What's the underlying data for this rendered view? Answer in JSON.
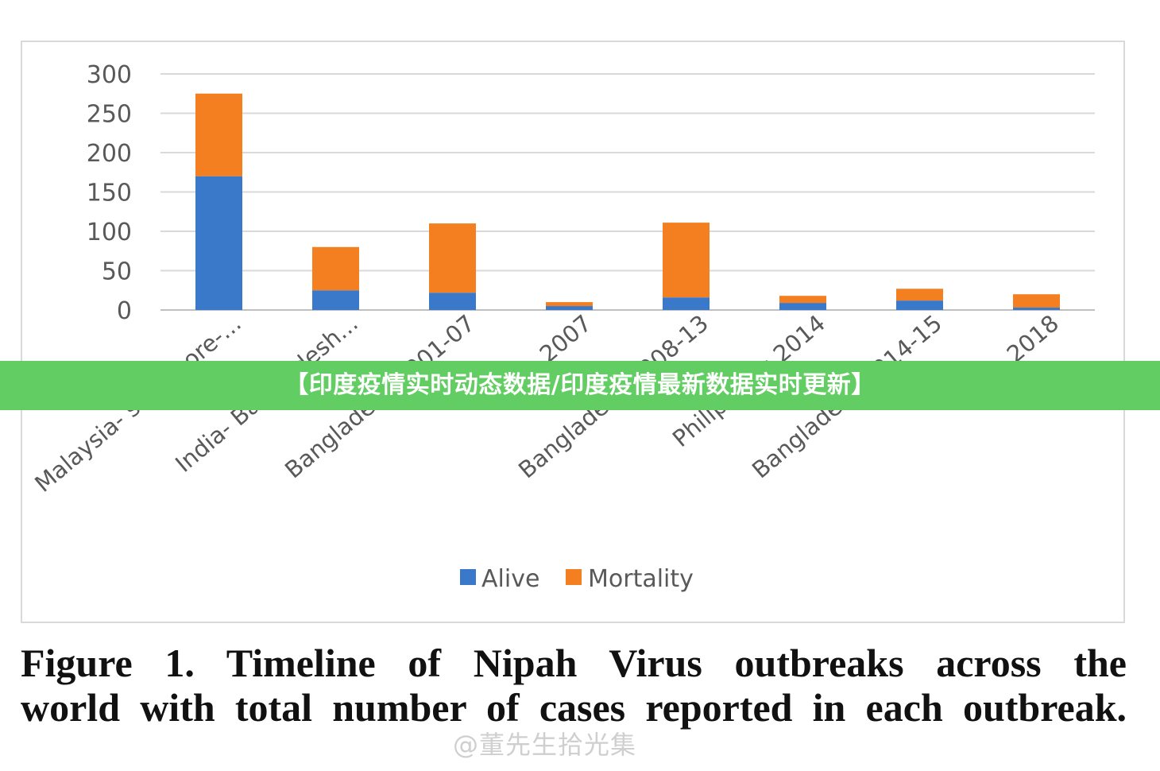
{
  "chart_data": {
    "type": "bar",
    "stacked": true,
    "categories": [
      "Malaysia- singapore-...",
      "India- Bangladesh...",
      "Bangladesh 2001-07",
      "India 2007",
      "Bangladesh 2008-13",
      "Philipinnes 2014",
      "Bangladesh 2014-15",
      "India 2018"
    ],
    "series": [
      {
        "name": "Alive",
        "color": "#3a78c9",
        "values": [
          170,
          25,
          22,
          5,
          16,
          9,
          12,
          3
        ]
      },
      {
        "name": "Mortality",
        "color": "#f37f20",
        "values": [
          105,
          55,
          88,
          5,
          95,
          9,
          15,
          17
        ]
      }
    ],
    "ylim": [
      0,
      300
    ],
    "yticks": [
      0,
      50,
      100,
      150,
      200,
      250,
      300
    ],
    "grid": true,
    "legend_position": "bottom"
  },
  "banner_text": "【印度疫情实时动态数据/印度疫情最新数据实时更新】",
  "caption": {
    "line1": "Figure 1. Timeline of Nipah Virus outbreaks across the",
    "line2": "world with total number of cases reported in each outbreak."
  },
  "watermark": "@董先生拾光集"
}
